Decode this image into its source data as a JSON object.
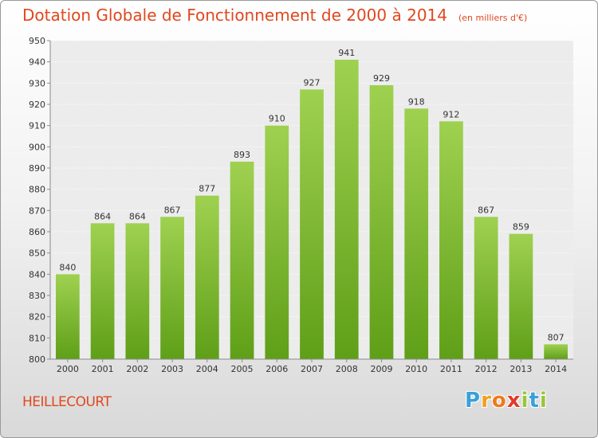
{
  "chart_data": {
    "type": "bar",
    "title": "Dotation Globale de Fonctionnement de 2000 à 2014",
    "unit_note": "(en milliers d'€)",
    "categories": [
      "2000",
      "2001",
      "2002",
      "2003",
      "2004",
      "2005",
      "2006",
      "2007",
      "2008",
      "2009",
      "2010",
      "2011",
      "2012",
      "2013",
      "2014"
    ],
    "values": [
      840,
      864,
      864,
      867,
      877,
      893,
      910,
      927,
      941,
      929,
      918,
      912,
      867,
      859,
      807
    ],
    "ylim": [
      800,
      950
    ],
    "yticks": [
      800,
      810,
      820,
      830,
      840,
      850,
      860,
      870,
      880,
      890,
      900,
      910,
      920,
      930,
      940,
      950
    ],
    "grid": true,
    "bar_color_top": "#9fd150",
    "bar_color_bottom": "#5f9f18",
    "xlabel": "",
    "ylabel": ""
  },
  "commune": "HEILLECOURT",
  "logo": {
    "letters": [
      "P",
      "r",
      "o",
      "x",
      "i",
      "t",
      "i"
    ],
    "colors": [
      "#3aa0d8",
      "#f0a020",
      "#f07a1c",
      "#e23a2a",
      "#9ac43c",
      "#3aa0d8",
      "#9ac43c"
    ]
  },
  "colors": {
    "title": "#e0481f",
    "background_top": "#ffffff",
    "background_bottom": "#d9d9d9"
  }
}
